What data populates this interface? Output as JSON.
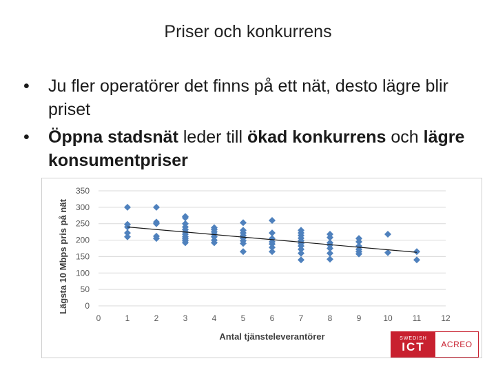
{
  "slide": {
    "title": "Priser och konkurrens",
    "bullet1": "Ju fler operatörer det finns på ett nät, desto lägre blir priset",
    "bullet2_parts": [
      "Öppna stadsnät",
      " leder till ",
      "ökad konkurrens",
      " och ",
      "lägre konsumentpriser"
    ],
    "bullet_symbol": "•"
  },
  "logo": {
    "top": "SWEDISH",
    "bottom": "ICT",
    "right": "ACREO"
  },
  "colors": {
    "marker": "#4f81bd",
    "trend": "#1a1a1a",
    "logo_red": "#c8202f"
  },
  "chart_data": {
    "type": "scatter",
    "xlabel": "Antal tjänsteleverantörer",
    "ylabel": "Lägsta 10 Mbps pris på nät",
    "xlim": [
      0,
      12
    ],
    "ylim": [
      0,
      350
    ],
    "xticks": [
      0,
      1,
      2,
      3,
      4,
      5,
      6,
      7,
      8,
      9,
      10,
      11,
      12
    ],
    "yticks": [
      0,
      50,
      100,
      150,
      200,
      250,
      300,
      350
    ],
    "grid": "horizontal",
    "points": [
      [
        1,
        300
      ],
      [
        1,
        248
      ],
      [
        1,
        240
      ],
      [
        1,
        222
      ],
      [
        1,
        210
      ],
      [
        2,
        300
      ],
      [
        2,
        255
      ],
      [
        2,
        250
      ],
      [
        2,
        212
      ],
      [
        2,
        205
      ],
      [
        3,
        272
      ],
      [
        3,
        268
      ],
      [
        3,
        250
      ],
      [
        3,
        240
      ],
      [
        3,
        232
      ],
      [
        3,
        225
      ],
      [
        3,
        218
      ],
      [
        3,
        210
      ],
      [
        3,
        204
      ],
      [
        3,
        198
      ],
      [
        3,
        192
      ],
      [
        4,
        238
      ],
      [
        4,
        232
      ],
      [
        4,
        225
      ],
      [
        4,
        218
      ],
      [
        4,
        210
      ],
      [
        4,
        200
      ],
      [
        4,
        192
      ],
      [
        5,
        253
      ],
      [
        5,
        230
      ],
      [
        5,
        222
      ],
      [
        5,
        214
      ],
      [
        5,
        206
      ],
      [
        5,
        198
      ],
      [
        5,
        190
      ],
      [
        5,
        165
      ],
      [
        6,
        260
      ],
      [
        6,
        222
      ],
      [
        6,
        205
      ],
      [
        6,
        195
      ],
      [
        6,
        188
      ],
      [
        6,
        178
      ],
      [
        6,
        165
      ],
      [
        7,
        230
      ],
      [
        7,
        222
      ],
      [
        7,
        214
      ],
      [
        7,
        206
      ],
      [
        7,
        198
      ],
      [
        7,
        190
      ],
      [
        7,
        182
      ],
      [
        7,
        172
      ],
      [
        7,
        160
      ],
      [
        7,
        140
      ],
      [
        8,
        218
      ],
      [
        8,
        208
      ],
      [
        8,
        192
      ],
      [
        8,
        185
      ],
      [
        8,
        175
      ],
      [
        8,
        160
      ],
      [
        8,
        142
      ],
      [
        9,
        205
      ],
      [
        9,
        195
      ],
      [
        9,
        182
      ],
      [
        9,
        172
      ],
      [
        9,
        165
      ],
      [
        9,
        158
      ],
      [
        10,
        218
      ],
      [
        10,
        162
      ],
      [
        11,
        165
      ],
      [
        11,
        140
      ]
    ],
    "trendline": [
      [
        1,
        240
      ],
      [
        11,
        163
      ]
    ]
  }
}
